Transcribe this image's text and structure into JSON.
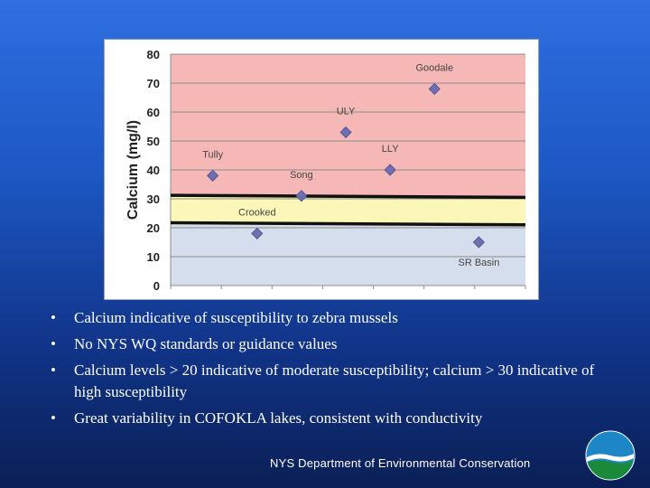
{
  "chart_data": {
    "type": "scatter",
    "ylabel": "Calcium (mg/l)",
    "ylim": [
      0,
      80
    ],
    "yticks": [
      0,
      10,
      20,
      30,
      40,
      50,
      60,
      70,
      80
    ],
    "zones": [
      {
        "name": "low",
        "from": 0,
        "to": 21,
        "color": "#d4deec"
      },
      {
        "name": "moderate",
        "from": 21,
        "to": 31,
        "color": "#fbf7b8"
      },
      {
        "name": "high",
        "from": 31,
        "to": 80,
        "color": "#f6b7b7"
      }
    ],
    "threshold_lines": [
      {
        "start": 31.2,
        "end": 30.5
      },
      {
        "start": 21.7,
        "end": 21.0
      }
    ],
    "points": [
      {
        "label": "Tully",
        "x": 1,
        "y": 38
      },
      {
        "label": "Crooked",
        "x": 2,
        "y": 18
      },
      {
        "label": "Song",
        "x": 3,
        "y": 31
      },
      {
        "label": "ULY",
        "x": 4,
        "y": 53
      },
      {
        "label": "LLY",
        "x": 5,
        "y": 40
      },
      {
        "label": "Goodale",
        "x": 6,
        "y": 68
      },
      {
        "label": "SR Basin",
        "x": 7,
        "y": 15
      }
    ],
    "marker_color": "#6d6fb0",
    "line_color": "#111111"
  },
  "bullets": [
    "Calcium indicative of susceptibility to zebra mussels",
    "No NYS WQ standards or guidance values",
    "Calcium levels > 20 indicative of moderate susceptibility; calcium > 30 indicative of high susceptibility",
    "Great variability in COFOKLA lakes, consistent with conductivity"
  ],
  "bullet_symbol": "•",
  "footer": "NYS Department of Environmental  Conservation",
  "logo_icon": "nysdec-logo-icon"
}
